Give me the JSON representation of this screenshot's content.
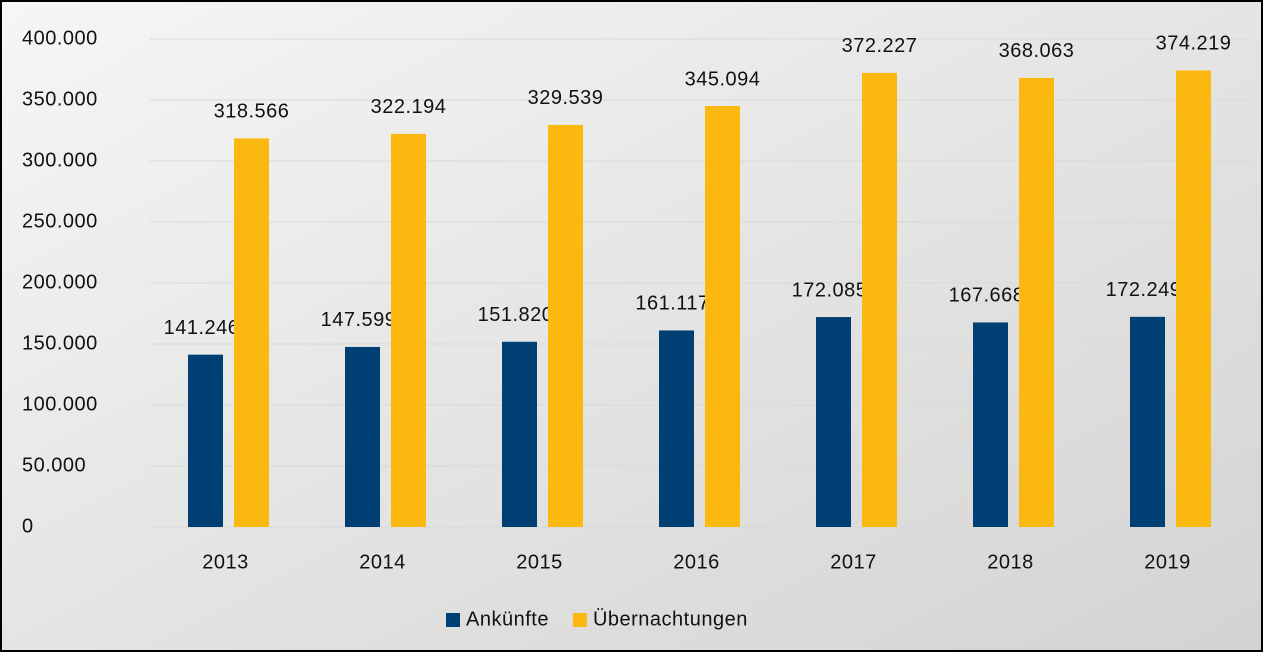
{
  "chart_data": {
    "type": "bar",
    "categories": [
      "2013",
      "2014",
      "2015",
      "2016",
      "2017",
      "2018",
      "2019"
    ],
    "series": [
      {
        "name": "Ankünfte",
        "color": "#003f73",
        "values": [
          141246,
          147599,
          151820,
          161117,
          172085,
          167668,
          172249
        ],
        "value_labels": [
          "141.246",
          "147.599",
          "151.820",
          "161.117",
          "172.085",
          "167.668",
          "172.249"
        ]
      },
      {
        "name": "Übernachtungen",
        "color": "#fbb80f",
        "values": [
          318566,
          322194,
          329539,
          345094,
          372227,
          368063,
          374219
        ],
        "value_labels": [
          "318.566",
          "322.194",
          "329.539",
          "345.094",
          "372.227",
          "368.063",
          "374.219"
        ]
      }
    ],
    "ylim": [
      0,
      400000
    ],
    "yticks": [
      0,
      {
        "value": 50000,
        "label": "50.000"
      },
      {
        "value": 100000,
        "label": "100.000"
      },
      {
        "value": 150000,
        "label": "150.000"
      },
      {
        "value": 200000,
        "label": "200.000"
      },
      {
        "value": 250000,
        "label": "250.000"
      },
      {
        "value": 300000,
        "label": "300.000"
      },
      {
        "value": 350000,
        "label": "350.000"
      },
      {
        "value": 400000,
        "label": "400.000"
      }
    ],
    "grid": true,
    "legend": "bottom"
  }
}
